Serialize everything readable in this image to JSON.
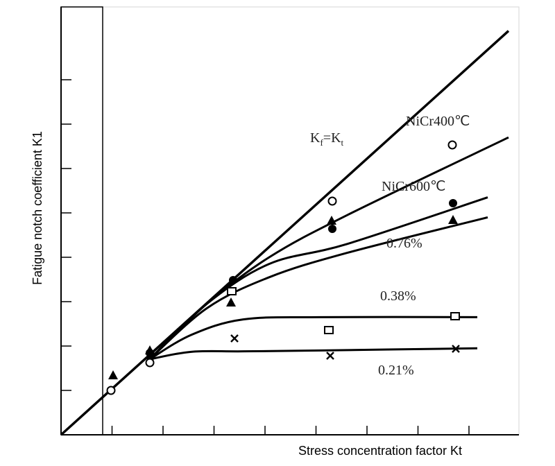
{
  "chart_data": {
    "type": "line",
    "title": "",
    "xlabel": "Stress concentration factor Kt",
    "ylabel": "Fatigue notch coefficient K1",
    "grid": false,
    "legend": "none",
    "reference_line": {
      "label_main": "K",
      "label_sub1": "f",
      "label_eq": "=K",
      "label_sub2": "t"
    },
    "series": [
      {
        "name": "NiCr400℃",
        "marker": "open-circle",
        "points": [
          [
            1.0,
            1.0
          ],
          [
            2.0,
            2.0
          ],
          [
            3.9,
            3.7
          ],
          [
            5.5,
            4.5
          ]
        ],
        "markers": [
          [
            1.15,
            0.9
          ],
          [
            1.8,
            1.6
          ],
          [
            3.92,
            3.72
          ],
          [
            5.45,
            5.2
          ]
        ]
      },
      {
        "name": "NiCr600℃",
        "marker": "filled-circle",
        "points": [
          [
            1.0,
            1.0
          ],
          [
            2.0,
            2.0
          ],
          [
            3.9,
            3.3
          ],
          [
            5.5,
            3.8
          ]
        ],
        "markers": [
          [
            1.8,
            1.9
          ],
          [
            2.8,
            3.45
          ],
          [
            3.9,
            3.4
          ],
          [
            5.45,
            3.65
          ]
        ]
      },
      {
        "name": "0.76%",
        "marker": "filled-triangle",
        "points": [
          [
            1.0,
            1.0
          ],
          [
            2.0,
            2.0
          ],
          [
            3.9,
            3.2
          ],
          [
            5.5,
            3.6
          ]
        ],
        "markers": [
          [
            1.1,
            1.3
          ],
          [
            1.8,
            1.85
          ],
          [
            2.8,
            3.0
          ],
          [
            3.9,
            3.55
          ],
          [
            5.45,
            3.6
          ]
        ]
      },
      {
        "name": "0.38%",
        "marker": "open-square",
        "points": [
          [
            1.0,
            1.0
          ],
          [
            2.0,
            2.0
          ],
          [
            3.9,
            2.4
          ],
          [
            5.5,
            2.4
          ]
        ],
        "markers": [
          [
            2.8,
            3.2
          ],
          [
            3.9,
            2.3
          ],
          [
            5.45,
            2.45
          ]
        ]
      },
      {
        "name": "0.21%",
        "marker": "x",
        "points": [
          [
            1.0,
            1.0
          ],
          [
            2.0,
            1.9
          ],
          [
            3.9,
            1.95
          ],
          [
            5.5,
            2.0
          ]
        ],
        "markers": [
          [
            1.8,
            1.85
          ],
          [
            2.9,
            2.15
          ],
          [
            3.9,
            1.75
          ],
          [
            5.45,
            1.95
          ]
        ]
      }
    ]
  }
}
